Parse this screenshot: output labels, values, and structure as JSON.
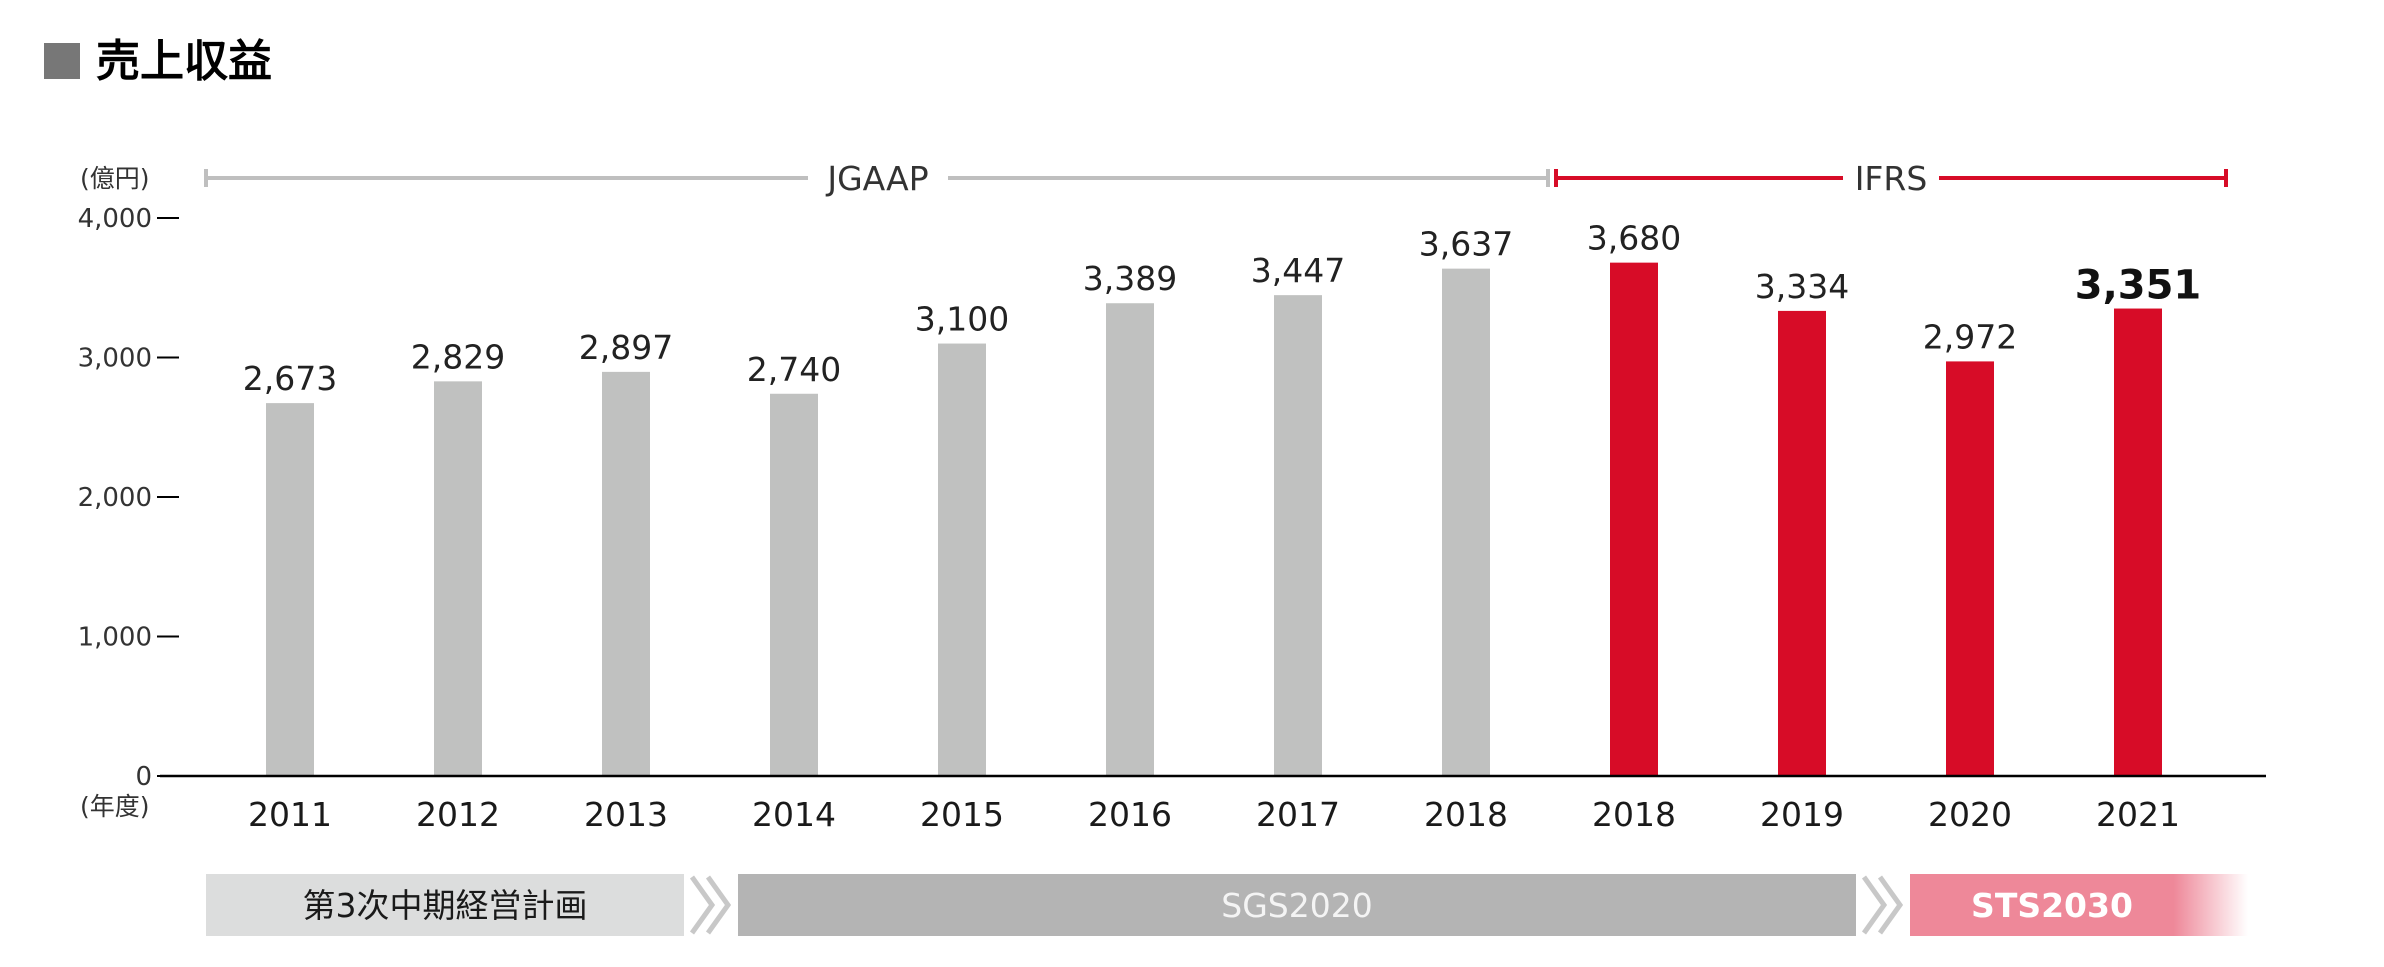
{
  "title": "売上収益",
  "colors": {
    "title_square": "#777777",
    "gray_bar": "#c0c1c0",
    "red_bar": "#d70c27",
    "jgaap_line": "#bfbfbf",
    "ifrs_line": "#d70c27",
    "plan1_bg": "#dcdddd",
    "plan1_text": "#1a1a1a",
    "plan2_bg": "#b4b4b4",
    "plan2_text": "#f4f4f4",
    "plan3_bg": "#ee8899",
    "plan3_text": "#ffffff",
    "chevron": "#c8c8c8",
    "axis": "#000000"
  },
  "standards": {
    "jgaap": "JGAAP",
    "ifrs": "IFRS"
  },
  "plans": [
    {
      "label": "第3次中期経営計画"
    },
    {
      "label": "SGS2020"
    },
    {
      "label": "STS2030"
    }
  ],
  "chart_data": {
    "type": "bar",
    "title": "売上収益",
    "ylabel": "(億円)",
    "xlabel": "(年度)",
    "ylim": [
      0,
      4000
    ],
    "yticks": [
      0,
      1000,
      2000,
      3000,
      4000
    ],
    "ytick_labels": [
      "0",
      "1,000",
      "2,000",
      "3,000",
      "4,000"
    ],
    "grid": false,
    "categories": [
      "2011",
      "2012",
      "2013",
      "2014",
      "2015",
      "2016",
      "2017",
      "2018",
      "2018",
      "2019",
      "2020",
      "2021"
    ],
    "values": [
      2673,
      2829,
      2897,
      2740,
      3100,
      3389,
      3447,
      3637,
      3680,
      3334,
      2972,
      3351
    ],
    "value_labels": [
      "2,673",
      "2,829",
      "2,897",
      "2,740",
      "3,100",
      "3,389",
      "3,447",
      "3,637",
      "3,680",
      "3,334",
      "2,972",
      "3,351"
    ],
    "standard": [
      "JGAAP",
      "JGAAP",
      "JGAAP",
      "JGAAP",
      "JGAAP",
      "JGAAP",
      "JGAAP",
      "JGAAP",
      "IFRS",
      "IFRS",
      "IFRS",
      "IFRS"
    ],
    "emphasized_index": 11
  }
}
